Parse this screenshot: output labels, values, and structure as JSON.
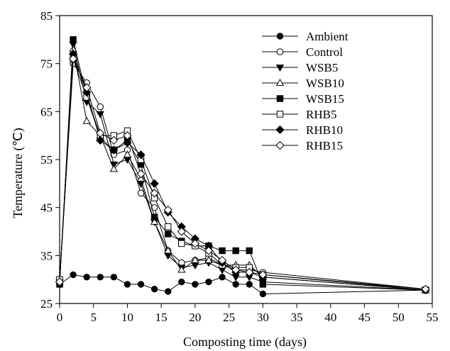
{
  "chart_data": {
    "type": "line",
    "xlabel": "Composting time (days)",
    "ylabel": "Temperature (℃)",
    "xlim": [
      0,
      55
    ],
    "ylim": [
      25,
      85
    ],
    "xticks": [
      "0",
      "5",
      "10",
      "15",
      "20",
      "25",
      "30",
      "35",
      "40",
      "45",
      "50",
      "55"
    ],
    "yticks": [
      "25",
      "35",
      "45",
      "55",
      "65",
      "75",
      "85"
    ],
    "grid": false,
    "legend_position": "top-right",
    "series": [
      {
        "name": "Ambient",
        "marker": "circle-filled",
        "x": [
          0,
          2,
          4,
          6,
          8,
          10,
          12,
          14,
          16,
          18,
          20,
          22,
          24,
          26,
          28,
          30,
          54
        ],
        "y": [
          29.0,
          31.0,
          30.5,
          30.5,
          30.5,
          29.0,
          29.0,
          28.0,
          27.5,
          29.5,
          29.0,
          29.5,
          30.5,
          29.0,
          29.0,
          27.0,
          27.8
        ]
      },
      {
        "name": "Control",
        "marker": "circle-open",
        "x": [
          0,
          2,
          4,
          6,
          8,
          10,
          12,
          14,
          16,
          18,
          20,
          22,
          24,
          26,
          28,
          30,
          54
        ],
        "y": [
          30.0,
          75.0,
          71.0,
          66.0,
          56.0,
          57.0,
          48.0,
          45.0,
          36.0,
          33.5,
          34.0,
          34.5,
          33.0,
          32.0,
          32.0,
          31.5,
          28.0
        ]
      },
      {
        "name": "WSB5",
        "marker": "triangle-down-filled",
        "x": [
          0,
          2,
          4,
          6,
          8,
          10,
          12,
          14,
          16,
          18,
          20,
          22,
          24,
          26,
          28,
          30,
          54
        ],
        "y": [
          29.5,
          79.0,
          67.0,
          64.5,
          54.0,
          55.0,
          50.0,
          42.0,
          35.0,
          32.5,
          33.0,
          33.5,
          32.0,
          30.5,
          30.5,
          29.5,
          27.8
        ]
      },
      {
        "name": "WSB10",
        "marker": "triangle-up-open",
        "x": [
          0,
          2,
          4,
          6,
          8,
          10,
          12,
          14,
          16,
          18,
          20,
          22,
          24,
          26,
          28,
          30,
          54
        ],
        "y": [
          29.5,
          78.0,
          63.0,
          60.0,
          53.0,
          56.0,
          51.0,
          42.0,
          36.0,
          32.0,
          34.0,
          34.0,
          33.0,
          33.0,
          33.0,
          30.5,
          27.8
        ]
      },
      {
        "name": "WSB15",
        "marker": "square-filled",
        "x": [
          0,
          2,
          4,
          6,
          8,
          10,
          12,
          14,
          16,
          18,
          20,
          22,
          24,
          26,
          28,
          30,
          54
        ],
        "y": [
          29.0,
          80.0,
          68.0,
          59.5,
          57.0,
          59.0,
          54.0,
          43.0,
          39.5,
          38.0,
          37.0,
          37.0,
          36.0,
          36.0,
          36.0,
          29.0,
          27.8
        ]
      },
      {
        "name": "RHB5",
        "marker": "square-open",
        "x": [
          0,
          2,
          4,
          6,
          8,
          10,
          12,
          14,
          16,
          18,
          20,
          22,
          24,
          26,
          28,
          30,
          54
        ],
        "y": [
          30.0,
          76.0,
          68.0,
          60.0,
          60.0,
          61.0,
          55.0,
          47.0,
          41.0,
          37.5,
          37.0,
          35.5,
          33.0,
          32.5,
          32.5,
          31.0,
          27.8
        ]
      },
      {
        "name": "RHB10",
        "marker": "diamond-filled",
        "x": [
          0,
          2,
          4,
          6,
          8,
          10,
          12,
          14,
          16,
          18,
          20,
          22,
          24,
          26,
          28,
          30,
          54
        ],
        "y": [
          29.5,
          77.0,
          69.0,
          59.0,
          57.0,
          58.5,
          56.0,
          50.0,
          44.0,
          41.0,
          38.5,
          37.0,
          33.5,
          31.5,
          31.5,
          30.5,
          27.8
        ]
      },
      {
        "name": "RHB15",
        "marker": "diamond-open",
        "x": [
          0,
          2,
          4,
          6,
          8,
          10,
          12,
          14,
          16,
          18,
          20,
          22,
          24,
          26,
          28,
          30,
          54
        ],
        "y": [
          29.5,
          76.0,
          70.0,
          60.5,
          59.0,
          60.0,
          52.0,
          48.0,
          44.5,
          40.0,
          37.5,
          36.0,
          34.0,
          32.0,
          31.5,
          31.0,
          28.0
        ]
      }
    ]
  }
}
